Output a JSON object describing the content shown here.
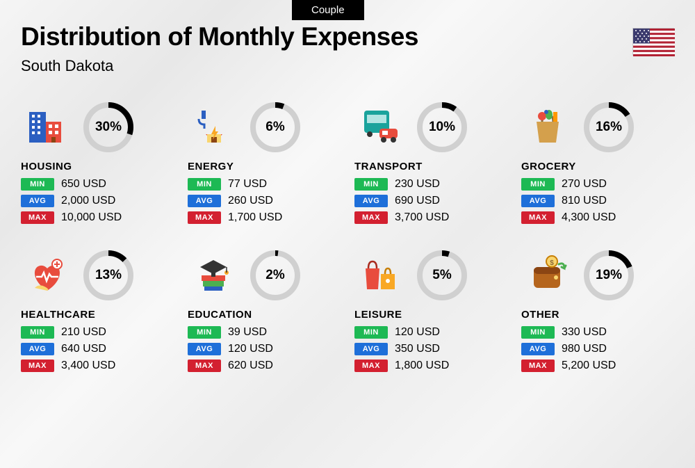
{
  "tag": "Couple",
  "title": "Distribution of Monthly Expenses",
  "subtitle": "South Dakota",
  "flag": "usa",
  "donut": {
    "track_color": "#d0d0d0",
    "fill_color": "#000000",
    "stroke_width": 8,
    "radius": 32
  },
  "badges": {
    "min": {
      "label": "MIN",
      "bg": "#1db954"
    },
    "avg": {
      "label": "AVG",
      "bg": "#1e6fd9"
    },
    "max": {
      "label": "MAX",
      "bg": "#d32030"
    }
  },
  "categories": [
    {
      "name": "HOUSING",
      "icon": "housing",
      "percent": 30,
      "min": "650 USD",
      "avg": "2,000 USD",
      "max": "10,000 USD"
    },
    {
      "name": "ENERGY",
      "icon": "energy",
      "percent": 6,
      "min": "77 USD",
      "avg": "260 USD",
      "max": "1,700 USD"
    },
    {
      "name": "TRANSPORT",
      "icon": "transport",
      "percent": 10,
      "min": "230 USD",
      "avg": "690 USD",
      "max": "3,700 USD"
    },
    {
      "name": "GROCERY",
      "icon": "grocery",
      "percent": 16,
      "min": "270 USD",
      "avg": "810 USD",
      "max": "4,300 USD"
    },
    {
      "name": "HEALTHCARE",
      "icon": "healthcare",
      "percent": 13,
      "min": "210 USD",
      "avg": "640 USD",
      "max": "3,400 USD"
    },
    {
      "name": "EDUCATION",
      "icon": "education",
      "percent": 2,
      "min": "39 USD",
      "avg": "120 USD",
      "max": "620 USD"
    },
    {
      "name": "LEISURE",
      "icon": "leisure",
      "percent": 5,
      "min": "120 USD",
      "avg": "350 USD",
      "max": "1,800 USD"
    },
    {
      "name": "OTHER",
      "icon": "other",
      "percent": 19,
      "min": "330 USD",
      "avg": "980 USD",
      "max": "5,200 USD"
    }
  ]
}
